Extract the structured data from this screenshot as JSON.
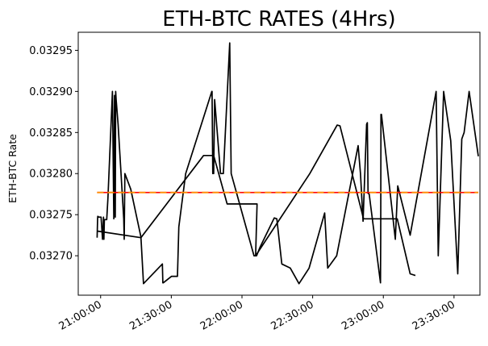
{
  "chart_data": {
    "type": "line",
    "title": "ETH-BTC RATES (4Hrs)",
    "xlabel": "",
    "ylabel": "ETH-BTC Rate",
    "x_tick_labels": [
      "21:00:00",
      "21:30:00",
      "22:00:00",
      "22:30:00",
      "23:00:00",
      "23:30:00"
    ],
    "y_ticks": [
      0.0327,
      0.03275,
      0.0328,
      0.03285,
      0.0329,
      0.03295
    ],
    "y_tick_labels": [
      "0.03270",
      "0.03275",
      "0.03280",
      "0.03285",
      "0.03290",
      "0.03295"
    ],
    "xlim_minutes": [
      -9.5,
      161
    ],
    "ylim": [
      0.032652,
      0.032972
    ],
    "x_unit": "minutes after 21:00:00",
    "grid": false,
    "legend": "none",
    "series": [
      {
        "color": "#000000",
        "style": "solid",
        "x": [
          -1.5,
          -1.3,
          -1.2,
          -0.8,
          0.2,
          0.8,
          1.2,
          1.4,
          1.6,
          2.2,
          2.4,
          2.6,
          3.1,
          5.0,
          5.6,
          5.9,
          6.2,
          6.4,
          6.6,
          7.4,
          9.8,
          10.0,
          10.3,
          12.8,
          17.1,
          18.2,
          26.2,
          26.4,
          26.6,
          30.1,
          32.6,
          33.2,
          36.1,
          47.2,
          47.3,
          47.6,
          48.0,
          48.4,
          50.9,
          51.4,
          52.1,
          54.8,
          55.4,
          65.1,
          65.4,
          65.8,
          66.2,
          67.6,
          73.7,
          74.8,
          76.9,
          80.5,
          84.2,
          88.5,
          95.1,
          96.4,
          100.2,
          109.3,
          110.3,
          111.4,
          112.9,
          113.2,
          113.5,
          114.0,
          118.8,
          118.9,
          119.0,
          119.2,
          125.1,
          126.1,
          131.4,
          142.4,
          143.3,
          145.6,
          148.6,
          151.6,
          153.3,
          154.3,
          156.4,
          160.3
        ],
        "y": [
          0.032722,
          0.032745,
          0.032748,
          0.032747,
          0.032747,
          0.03272,
          0.032747,
          0.03272,
          0.032744,
          0.032744,
          0.032744,
          0.032744,
          0.03277,
          0.0329,
          0.032745,
          0.032895,
          0.032747,
          0.0329,
          0.03289,
          0.03286,
          0.032745,
          0.03272,
          0.0328,
          0.032781,
          0.032723,
          0.032666,
          0.03269,
          0.032667,
          0.032667,
          0.032675,
          0.032675,
          0.032735,
          0.0328,
          0.0329,
          0.0329,
          0.0328,
          0.0328,
          0.03289,
          0.0328,
          0.0328,
          0.0328,
          0.032959,
          0.0328,
          0.0327,
          0.0327,
          0.0327,
          0.0327,
          0.03271,
          0.032746,
          0.032745,
          0.03269,
          0.032685,
          0.032666,
          0.032685,
          0.032752,
          0.032685,
          0.0327,
          0.032834,
          0.0328,
          0.032742,
          0.03286,
          0.032862,
          0.032776,
          0.032775,
          0.032667,
          0.032722,
          0.032872,
          0.032872,
          0.03272,
          0.032785,
          0.032725,
          0.0329,
          0.0327,
          0.0329,
          0.03284,
          0.032678,
          0.032842,
          0.03285,
          0.0329,
          0.032821
        ]
      },
      {
        "color": "#000000",
        "style": "solid",
        "x": [
          -1.5,
          17.1,
          43.7,
          48.0,
          53.7,
          66.4,
          65.8,
          88.8,
          100.4,
          101.6,
          111.6,
          125.9,
          131.4,
          133.6
        ],
        "y": [
          0.03273,
          0.032722,
          0.032822,
          0.032822,
          0.032763,
          0.032763,
          0.0327,
          0.0328,
          0.032859,
          0.032858,
          0.032745,
          0.032745,
          0.032678,
          0.032676
        ]
      },
      {
        "color": "#ff0000",
        "style": "solid",
        "x": [
          -1.5,
          160.3
        ],
        "y": [
          0.032777,
          0.032777
        ]
      },
      {
        "color": "#ff8c00",
        "style": "dashed",
        "x": [
          -1.5,
          160.3
        ],
        "y": [
          0.032777,
          0.032777
        ]
      }
    ]
  }
}
